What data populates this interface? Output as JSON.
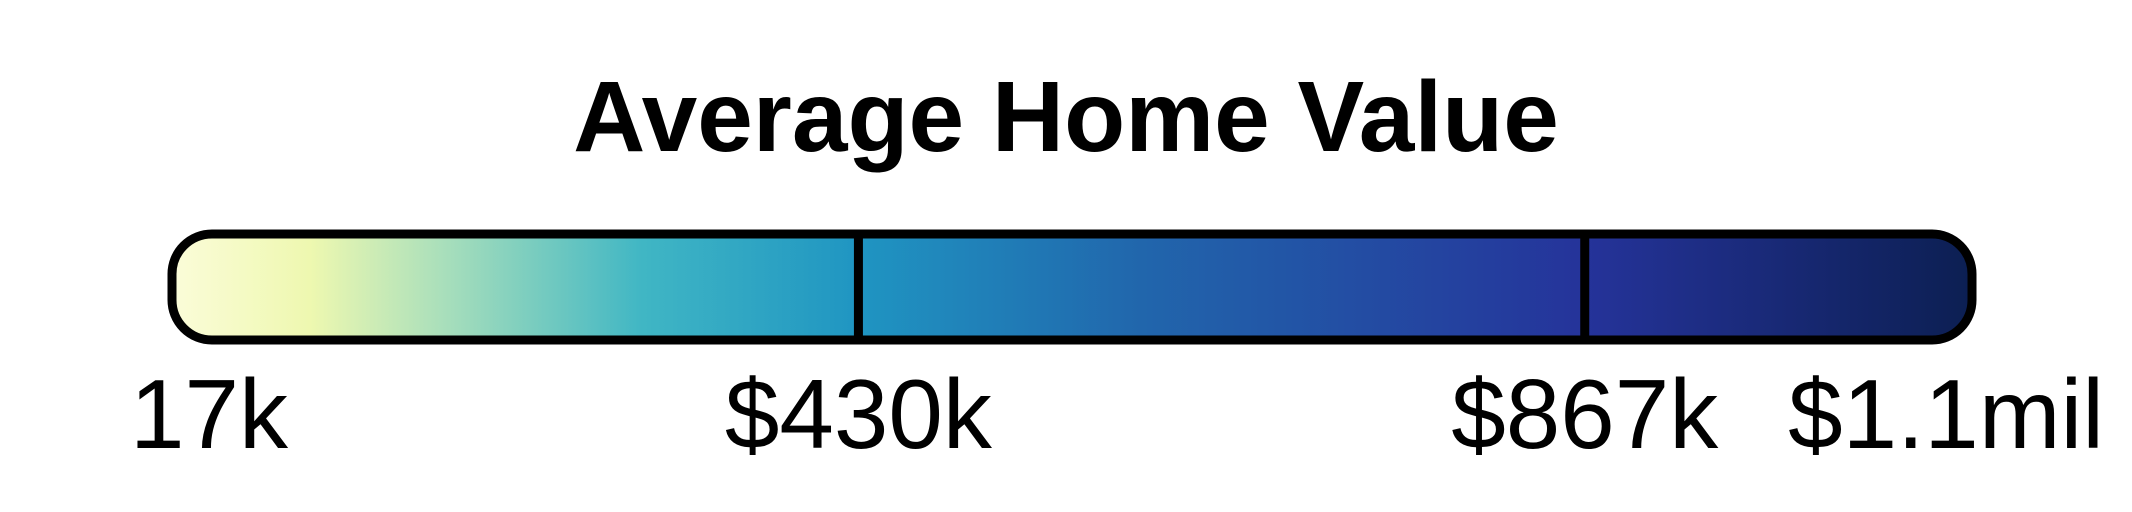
{
  "chart_data": {
    "type": "colorbar",
    "title": "Average Home Value",
    "ticks": [
      {
        "value": 17000,
        "label": "17k"
      },
      {
        "value": 430000,
        "label": "$430k"
      },
      {
        "value": 867000,
        "label": "$867k"
      },
      {
        "value": 1100000,
        "label": "$1.1mil"
      }
    ],
    "range": [
      17000,
      1100000
    ],
    "dividers_at": [
      430000,
      867000
    ],
    "colormap": "YlGnBu",
    "gradient_stops": [
      {
        "value": 17000,
        "color": "#fbfcd9"
      },
      {
        "value": 100000,
        "color": "#eef8b0"
      },
      {
        "value": 180000,
        "color": "#a9dfbb"
      },
      {
        "value": 300000,
        "color": "#40b6c4"
      },
      {
        "value": 430000,
        "color": "#1f95c2"
      },
      {
        "value": 600000,
        "color": "#2166ac"
      },
      {
        "value": 867000,
        "color": "#25339a"
      },
      {
        "value": 1100000,
        "color": "#0c1f52"
      }
    ],
    "outline_color": "#000000"
  }
}
